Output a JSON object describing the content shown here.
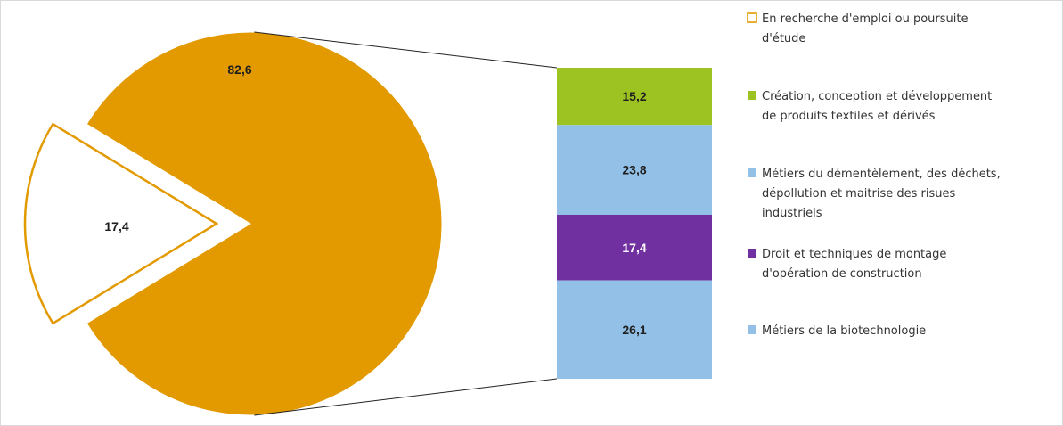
{
  "chart_data": {
    "type": "bar-of-pie",
    "pie": {
      "slices": [
        {
          "label": "En recherche d'emploi ou poursuite d'étude",
          "value": 82.6,
          "value_text": "82,6",
          "color": "#e29a00",
          "fill": "solid"
        },
        {
          "label": "",
          "value": 17.4,
          "value_text": "17,4",
          "color": "#e29a00",
          "fill": "outline",
          "exploded": true
        }
      ]
    },
    "bar": {
      "segments": [
        {
          "label": "Création, conception et développement de produits textiles et dérivés",
          "value": 15.2,
          "value_text": "15,2",
          "color": "#9cc322"
        },
        {
          "label": "Métiers du démentèlement,  des déchets, dépollution et maitrise des risues industriels",
          "value": 23.8,
          "value_text": "23,8",
          "color": "#92c0e6"
        },
        {
          "label": "Droit et techniques de montage d'opération de construction",
          "value": 17.4,
          "value_text": "17,4",
          "color": "#7030a0"
        },
        {
          "label": "Métiers de la biotechnologie",
          "value": 26.1,
          "value_text": "26,1",
          "color": "#92c0e6"
        }
      ]
    },
    "legend": {
      "placement": "right",
      "entries": [
        {
          "lines": [
            "En recherche d'emploi ou poursuite",
            "d'étude"
          ],
          "color": "#e29a00",
          "marker": "outline"
        },
        {
          "lines": [
            "Création, conception et développement",
            "de produits textiles et dérivés"
          ],
          "color": "#9cc322",
          "marker": "solid"
        },
        {
          "lines": [
            "Métiers du démentèlement,  des déchets,",
            "dépollution et maitrise des risues",
            "industriels"
          ],
          "color": "#92c0e6",
          "marker": "solid"
        },
        {
          "lines": [
            "Droit et techniques de montage",
            "d'opération de construction"
          ],
          "color": "#7030a0",
          "marker": "solid"
        },
        {
          "lines": [
            "Métiers de la biotechnologie"
          ],
          "color": "#92c0e6",
          "marker": "solid"
        }
      ]
    }
  }
}
